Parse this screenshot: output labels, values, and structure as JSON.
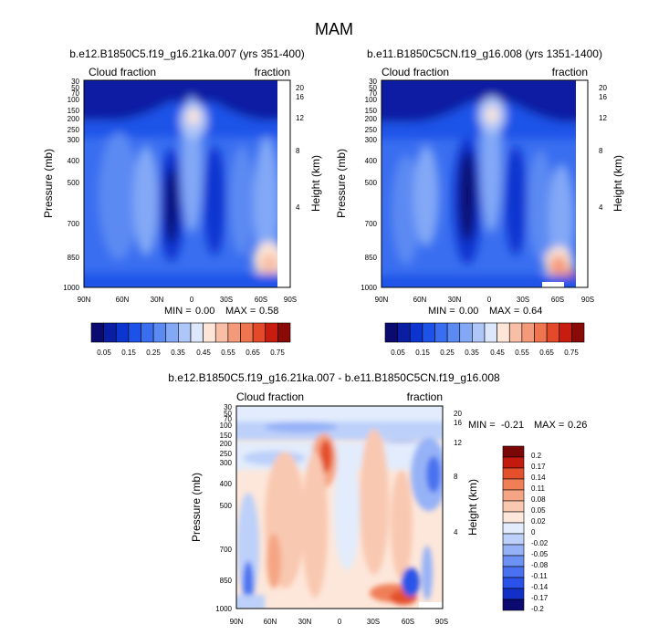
{
  "figure": {
    "title": "MAM"
  },
  "colors": {
    "abs_scale": [
      "#0a0a70",
      "#0a1ea3",
      "#0c35d0",
      "#1c52e8",
      "#3a6ef0",
      "#5b8af3",
      "#82a8f6",
      "#aec6f8",
      "#dce7fb",
      "#fde5d7",
      "#f8bfa6",
      "#f49a7a",
      "#ef7550",
      "#e24a2a",
      "#c81c10",
      "#8a0a08"
    ],
    "diff_scale": [
      "#0a0a70",
      "#1230c8",
      "#2a52e8",
      "#4a72f0",
      "#6e92f4",
      "#96b2f7",
      "#bcd0fa",
      "#e2ecfc",
      "#fde7da",
      "#f9c8b0",
      "#f5a584",
      "#f07f58",
      "#e4502c",
      "#c21a0e",
      "#7a0606"
    ]
  },
  "chart_data": [
    {
      "type": "heatmap",
      "title": "b.e12.B1850C5.f19_g16.21ka.007 (yrs 351-400)",
      "left_label": "Cloud fraction",
      "right_label": "fraction",
      "ylabel": "Pressure (mb)",
      "y2label": "Height (km)",
      "x_ticks": [
        "90N",
        "60N",
        "30N",
        "0",
        "30S",
        "60S",
        "90S"
      ],
      "y_ticks": [
        "30",
        "50",
        "70",
        "100",
        "150",
        "200",
        "250",
        "300",
        "400",
        "500",
        "700",
        "850",
        "1000"
      ],
      "y2_ticks": [
        "20",
        "16",
        "12",
        "8",
        "4"
      ],
      "stats": {
        "min_label": "MIN =",
        "min": "0.00",
        "max_label": "MAX =",
        "max": "0.58"
      },
      "colorbar_labels": [
        "0.05",
        "0.15",
        "0.25",
        "0.35",
        "0.45",
        "0.55",
        "0.65",
        "0.75"
      ],
      "value_range": [
        0.0,
        0.58
      ]
    },
    {
      "type": "heatmap",
      "title": "b.e11.B1850C5CN.f19_g16.008 (yrs 1351-1400)",
      "left_label": "Cloud fraction",
      "right_label": "fraction",
      "ylabel": "Pressure (mb)",
      "y2label": "Height (km)",
      "x_ticks": [
        "90N",
        "60N",
        "30N",
        "0",
        "30S",
        "60S",
        "90S"
      ],
      "y_ticks": [
        "30",
        "50",
        "70",
        "100",
        "150",
        "200",
        "250",
        "300",
        "400",
        "500",
        "700",
        "850",
        "1000"
      ],
      "y2_ticks": [
        "20",
        "16",
        "12",
        "8",
        "4"
      ],
      "stats": {
        "min_label": "MIN =",
        "min": "0.00",
        "max_label": "MAX =",
        "max": "0.64"
      },
      "colorbar_labels": [
        "0.05",
        "0.15",
        "0.25",
        "0.35",
        "0.45",
        "0.55",
        "0.65",
        "0.75"
      ],
      "value_range": [
        0.0,
        0.64
      ]
    },
    {
      "type": "heatmap",
      "title": "b.e12.B1850C5.f19_g16.21ka.007 - b.e11.B1850C5CN.f19_g16.008",
      "left_label": "Cloud fraction",
      "right_label": "fraction",
      "ylabel": "Pressure (mb)",
      "y2label": "Height (km)",
      "x_ticks": [
        "90N",
        "60N",
        "30N",
        "0",
        "30S",
        "60S",
        "90S"
      ],
      "y_ticks": [
        "30",
        "50",
        "70",
        "100",
        "150",
        "200",
        "250",
        "300",
        "400",
        "500",
        "700",
        "850",
        "1000"
      ],
      "y2_ticks": [
        "20",
        "16",
        "12",
        "8",
        "4"
      ],
      "stats": {
        "min_label": "MIN =",
        "min": "-0.21",
        "max_label": "MAX =",
        "max": "0.26"
      },
      "colorbar_labels": [
        "0.2",
        "0.17",
        "0.14",
        "0.11",
        "0.08",
        "0.05",
        "0.02",
        "0",
        "-0.02",
        "-0.05",
        "-0.08",
        "-0.11",
        "-0.14",
        "-0.17",
        "-0.2"
      ],
      "value_range": [
        -0.21,
        0.26
      ]
    }
  ]
}
